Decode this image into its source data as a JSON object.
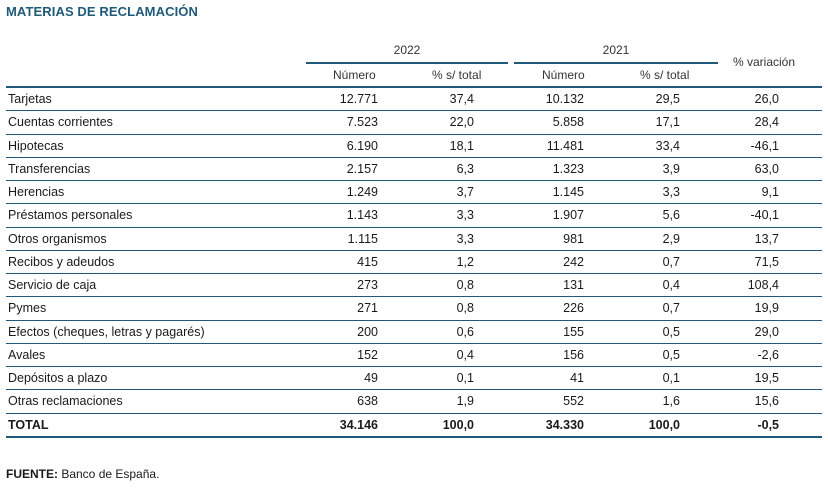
{
  "title": "MATERIAS DE RECLAMACIÓN",
  "header": {
    "year_2022": "2022",
    "year_2021": "2021",
    "numero": "Número",
    "pct_total": "% s/ total",
    "variacion": "% variación"
  },
  "rows": [
    {
      "label": "Tarjetas",
      "n2022": "12.771",
      "p2022": "37,4",
      "n2021": "10.132",
      "p2021": "29,5",
      "var": "26,0"
    },
    {
      "label": "Cuentas corrientes",
      "n2022": "7.523",
      "p2022": "22,0",
      "n2021": "5.858",
      "p2021": "17,1",
      "var": "28,4"
    },
    {
      "label": "Hipotecas",
      "n2022": "6.190",
      "p2022": "18,1",
      "n2021": "11.481",
      "p2021": "33,4",
      "var": "-46,1"
    },
    {
      "label": "Transferencias",
      "n2022": "2.157",
      "p2022": "6,3",
      "n2021": "1.323",
      "p2021": "3,9",
      "var": "63,0"
    },
    {
      "label": "Herencias",
      "n2022": "1.249",
      "p2022": "3,7",
      "n2021": "1.145",
      "p2021": "3,3",
      "var": "9,1"
    },
    {
      "label": "Préstamos personales",
      "n2022": "1.143",
      "p2022": "3,3",
      "n2021": "1.907",
      "p2021": "5,6",
      "var": "-40,1"
    },
    {
      "label": "Otros organismos",
      "n2022": "1.115",
      "p2022": "3,3",
      "n2021": "981",
      "p2021": "2,9",
      "var": "13,7"
    },
    {
      "label": "Recibos y adeudos",
      "n2022": "415",
      "p2022": "1,2",
      "n2021": "242",
      "p2021": "0,7",
      "var": "71,5"
    },
    {
      "label": "Servicio de caja",
      "n2022": "273",
      "p2022": "0,8",
      "n2021": "131",
      "p2021": "0,4",
      "var": "108,4"
    },
    {
      "label": "Pymes",
      "n2022": "271",
      "p2022": "0,8",
      "n2021": "226",
      "p2021": "0,7",
      "var": "19,9"
    },
    {
      "label": "Efectos (cheques, letras y pagarés)",
      "n2022": "200",
      "p2022": "0,6",
      "n2021": "155",
      "p2021": "0,5",
      "var": "29,0"
    },
    {
      "label": "Avales",
      "n2022": "152",
      "p2022": "0,4",
      "n2021": "156",
      "p2021": "0,5",
      "var": "-2,6"
    },
    {
      "label": "Depósitos a plazo",
      "n2022": "49",
      "p2022": "0,1",
      "n2021": "41",
      "p2021": "0,1",
      "var": "19,5"
    },
    {
      "label": "Otras reclamaciones",
      "n2022": "638",
      "p2022": "1,9",
      "n2021": "552",
      "p2021": "1,6",
      "var": "15,6"
    }
  ],
  "total": {
    "label": "TOTAL",
    "n2022": "34.146",
    "p2022": "100,0",
    "n2021": "34.330",
    "p2021": "100,0",
    "var": "-0,5"
  },
  "source": {
    "label": "FUENTE:",
    "text": " Banco de España."
  },
  "colors": {
    "accent": "#1f5a78"
  }
}
